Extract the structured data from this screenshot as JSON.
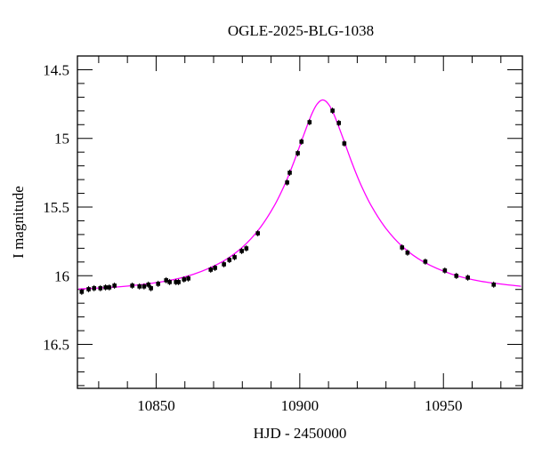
{
  "chart_data": {
    "type": "scatter",
    "title": "OGLE-2025-BLG-1038",
    "xlabel": "HJD - 2450000",
    "ylabel": "I magnitude",
    "xlim": [
      10822.6,
      10977.5
    ],
    "ylim": [
      14.4,
      16.82
    ],
    "y_inverted": true,
    "grid": false,
    "x_ticks": [
      10850,
      10900,
      10950
    ],
    "x_tick_labels": [
      "10850",
      "10900",
      "10950"
    ],
    "x_minor_step": 10,
    "y_ticks": [
      14.5,
      15,
      15.5,
      16,
      16.5
    ],
    "y_tick_labels": [
      "14.5",
      "15",
      "15.5",
      "16",
      "16.5"
    ],
    "y_minor_step": 0.1,
    "colors": {
      "points": "#000000",
      "model": "#ff00ff",
      "axes": "#000000"
    },
    "series": [
      {
        "kind": "points",
        "x": [
          10824.1,
          10826.5,
          10828.4,
          10830.6,
          10832.4,
          10833.7,
          10835.5,
          10841.7,
          10844.2,
          10845.8,
          10847.3,
          10848.2,
          10850.7,
          10853.5,
          10854.7,
          10856.9,
          10857.8,
          10859.7,
          10861.2,
          10869.0,
          10870.5,
          10873.6,
          10875.5,
          10877.3,
          10879.8,
          10881.4,
          10885.4,
          10895.6,
          10896.5,
          10899.3,
          10900.6,
          10903.4,
          10911.4,
          10913.6,
          10915.5,
          10935.6,
          10937.5,
          10943.7,
          10950.5,
          10954.5,
          10958.5,
          10967.5
        ],
        "y": [
          16.117,
          16.098,
          16.091,
          16.091,
          16.085,
          16.085,
          16.072,
          16.072,
          16.078,
          16.078,
          16.065,
          16.091,
          16.059,
          16.033,
          16.046,
          16.046,
          16.046,
          16.027,
          16.02,
          15.956,
          15.943,
          15.917,
          15.885,
          15.865,
          15.82,
          15.801,
          15.691,
          15.321,
          15.25,
          15.108,
          15.024,
          14.882,
          14.798,
          14.888,
          15.037,
          15.794,
          15.832,
          15.897,
          15.962,
          16.001,
          16.014,
          16.065
        ]
      },
      {
        "kind": "model-curve",
        "x": [
          10823,
          10838,
          10853,
          10863,
          10873,
          10880,
          10886,
          10891,
          10895,
          10898,
          10901,
          10904,
          10906,
          10908,
          10910,
          10912,
          10915,
          10918,
          10921,
          10925,
          10930,
          10936,
          10943,
          10953,
          10963,
          10977
        ],
        "y": [
          16.097,
          16.079,
          16.04,
          15.989,
          15.898,
          15.793,
          15.656,
          15.495,
          15.325,
          15.169,
          14.996,
          14.831,
          14.751,
          14.72,
          14.751,
          14.831,
          14.996,
          15.169,
          15.325,
          15.495,
          15.656,
          15.793,
          15.898,
          15.989,
          16.04,
          16.077
        ]
      }
    ]
  }
}
